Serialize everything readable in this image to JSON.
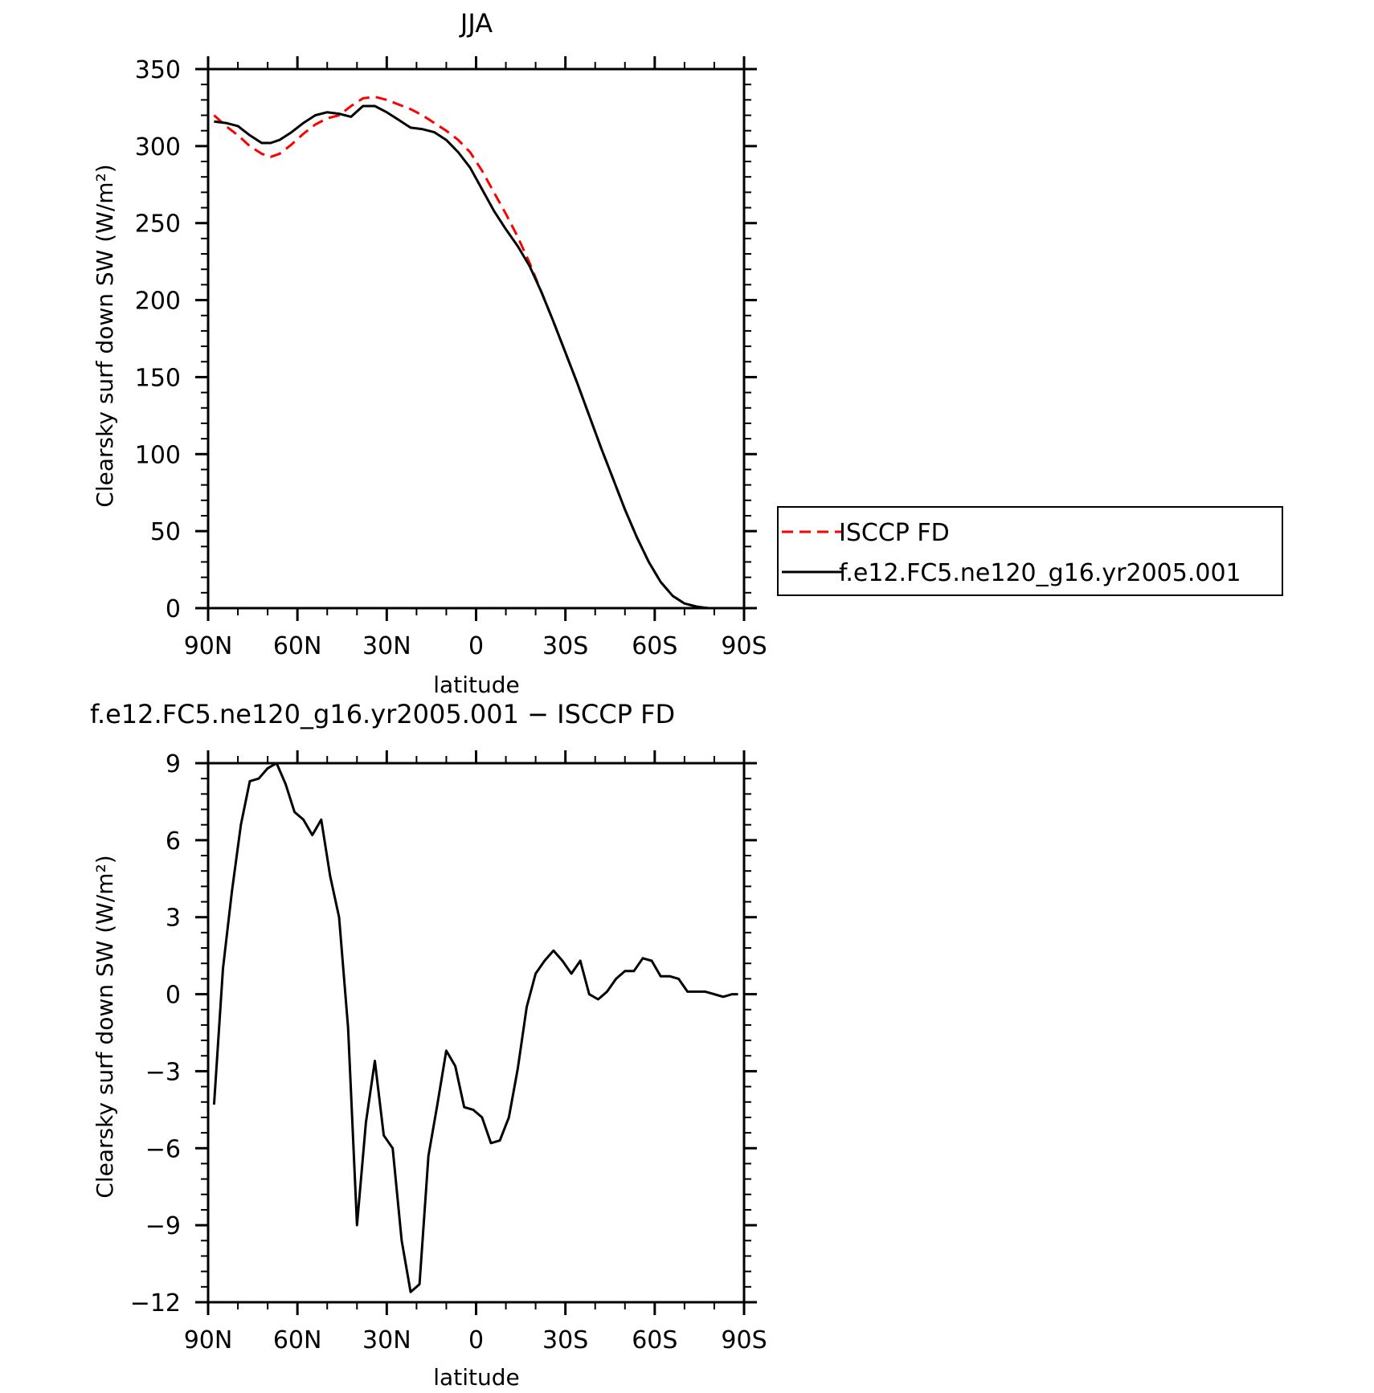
{
  "chart_data": [
    {
      "type": "line",
      "title": "JJA",
      "xlabel": "latitude",
      "ylabel": "Clearsky surf down SW (W/m²)",
      "xlim": [
        90,
        -90
      ],
      "ylim": [
        0,
        350
      ],
      "xticks": [
        90,
        60,
        30,
        0,
        -30,
        -60,
        -90
      ],
      "xtick_labels": [
        "90N",
        "60N",
        "30N",
        "0",
        "30S",
        "60S",
        "90S"
      ],
      "yticks": [
        0,
        50,
        100,
        150,
        200,
        250,
        300,
        350
      ],
      "ytick_labels": [
        "0",
        "50",
        "100",
        "150",
        "200",
        "250",
        "300",
        "350"
      ],
      "legend_position": "right",
      "series": [
        {
          "name": "ISCCP FD",
          "color": "#ff0000",
          "dash": "dashed",
          "x": [
            88,
            84,
            80,
            76,
            72,
            69,
            66,
            62,
            58,
            54,
            50,
            46,
            42,
            38,
            34,
            30,
            26,
            22,
            18,
            14,
            10,
            6,
            2,
            -2,
            -6,
            -10,
            -14,
            -18,
            -22,
            -26,
            -30,
            -34,
            -38,
            -42,
            -46,
            -50,
            -54,
            -58,
            -62,
            -66,
            -70,
            -74,
            -78,
            -82,
            -86,
            -88
          ],
          "y": [
            320,
            313,
            307,
            300,
            295,
            293,
            295,
            301,
            308,
            314,
            318,
            320,
            326,
            331,
            332,
            330,
            327,
            324,
            320,
            315,
            310,
            304,
            296,
            284,
            270,
            256,
            241,
            224,
            205,
            186,
            166,
            146,
            125,
            104,
            84,
            64,
            46,
            30,
            17,
            8,
            3,
            1,
            0,
            0,
            0,
            0
          ]
        },
        {
          "name": "f.e12.FC5.ne120_g16.yr2005.001",
          "color": "#000000",
          "dash": "solid",
          "x": [
            88,
            84,
            80,
            76,
            72,
            69,
            66,
            62,
            58,
            54,
            50,
            46,
            42,
            38,
            34,
            30,
            26,
            22,
            18,
            14,
            10,
            6,
            2,
            -2,
            -6,
            -10,
            -14,
            -18,
            -22,
            -26,
            -30,
            -34,
            -38,
            -42,
            -46,
            -50,
            -54,
            -58,
            -62,
            -66,
            -70,
            -74,
            -78,
            -82,
            -86,
            -88
          ],
          "y": [
            316,
            315,
            313,
            307,
            302,
            302,
            304,
            309,
            315,
            320,
            322,
            321,
            319,
            326,
            326,
            322,
            317,
            312,
            311,
            309,
            304,
            296,
            286,
            272,
            258,
            246,
            235,
            222,
            205,
            186,
            166,
            146,
            125,
            104,
            84,
            64,
            46,
            30,
            17,
            8,
            3,
            1,
            0,
            0,
            0,
            0
          ]
        }
      ]
    },
    {
      "type": "line",
      "title": "f.e12.FC5.ne120_g16.yr2005.001 − ISCCP FD",
      "xlabel": "latitude",
      "ylabel": "Clearsky surf down SW (W/m²)",
      "xlim": [
        90,
        -90
      ],
      "ylim": [
        -12,
        9
      ],
      "xticks": [
        90,
        60,
        30,
        0,
        -30,
        -60,
        -90
      ],
      "xtick_labels": [
        "90N",
        "60N",
        "30N",
        "0",
        "30S",
        "60S",
        "90S"
      ],
      "yticks": [
        -12,
        -9,
        -6,
        -3,
        0,
        3,
        6,
        9
      ],
      "ytick_labels": [
        "−12",
        "−9",
        "−6",
        "−3",
        "0",
        "3",
        "6",
        "9"
      ],
      "series": [
        {
          "color": "#000000",
          "dash": "solid",
          "x": [
            88,
            85,
            82,
            79,
            76,
            73,
            70,
            67,
            64,
            61,
            58,
            55,
            52,
            49,
            46,
            43,
            40,
            37,
            34,
            31,
            28,
            25,
            22,
            19,
            16,
            13,
            10,
            7,
            4,
            1,
            -2,
            -5,
            -8,
            -11,
            -14,
            -17,
            -20,
            -23,
            -26,
            -29,
            -32,
            -35,
            -38,
            -41,
            -44,
            -47,
            -50,
            -53,
            -56,
            -59,
            -62,
            -65,
            -68,
            -71,
            -74,
            -77,
            -80,
            -83,
            -86,
            -88
          ],
          "y": [
            -4.3,
            1.0,
            4.0,
            6.6,
            8.3,
            8.4,
            8.8,
            9.0,
            8.2,
            7.1,
            6.8,
            6.2,
            6.8,
            4.6,
            3.0,
            -1.3,
            -9.0,
            -5.0,
            -2.6,
            -5.5,
            -6.0,
            -9.6,
            -11.6,
            -11.3,
            -6.3,
            -4.3,
            -2.2,
            -2.8,
            -4.4,
            -4.5,
            -4.8,
            -5.8,
            -5.7,
            -4.8,
            -2.9,
            -0.5,
            0.8,
            1.3,
            1.7,
            1.3,
            0.8,
            1.3,
            0.0,
            -0.2,
            0.1,
            0.6,
            0.9,
            0.9,
            1.4,
            1.3,
            0.7,
            0.7,
            0.6,
            0.1,
            0.1,
            0.1,
            0.0,
            -0.1,
            0.0,
            0.0
          ]
        }
      ]
    }
  ]
}
